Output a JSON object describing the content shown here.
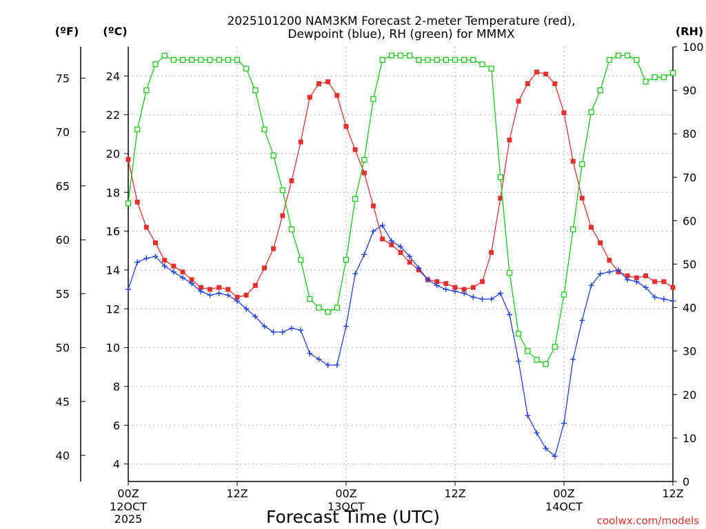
{
  "chart_data": {
    "type": "line",
    "title_line1": "2025101200 NAM3KM Forecast 2-meter Temperature (red),",
    "title_line2": "Dewpoint (blue), RH (green) for MMMX",
    "xlabel": "Forecast Time (UTC)",
    "credit": "coolwx.com/models",
    "axes": {
      "left_outer_unit": "(ºF)",
      "left_inner_unit": "(ºC)",
      "right_unit": "(RH)",
      "celsius_range": [
        3.1,
        25.5
      ],
      "rh_range": [
        0,
        100
      ],
      "celsius_ticks": [
        "4",
        "6",
        "8",
        "10",
        "12",
        "14",
        "16",
        "18",
        "20",
        "22",
        "24"
      ],
      "fahrenheit_ticks": [
        "40",
        "45",
        "50",
        "55",
        "60",
        "65",
        "70",
        "75"
      ],
      "rh_ticks": [
        "0",
        "10",
        "20",
        "30",
        "40",
        "50",
        "60",
        "70",
        "80",
        "90",
        "100"
      ],
      "x_range_hours": [
        0,
        60
      ],
      "x_ticks": [
        {
          "hour": 0,
          "label": "00Z",
          "line2": "12OCT",
          "line3": "2025"
        },
        {
          "hour": 12,
          "label": "12Z",
          "line2": "",
          "line3": ""
        },
        {
          "hour": 24,
          "label": "00Z",
          "line2": "13OCT",
          "line3": ""
        },
        {
          "hour": 36,
          "label": "12Z",
          "line2": "",
          "line3": ""
        },
        {
          "hour": 48,
          "label": "00Z",
          "line2": "14OCT",
          "line3": ""
        },
        {
          "hour": 60,
          "label": "12Z",
          "line2": "",
          "line3": ""
        }
      ]
    },
    "series": [
      {
        "name": "2-meter Temperature",
        "unit": "C",
        "color": "#e53030",
        "marker": "filled-square",
        "x": [
          0,
          1,
          2,
          3,
          4,
          5,
          6,
          7,
          8,
          9,
          10,
          11,
          12,
          13,
          14,
          15,
          16,
          17,
          18,
          19,
          20,
          21,
          22,
          23,
          24,
          25,
          26,
          27,
          28,
          29,
          30,
          31,
          32,
          33,
          34,
          35,
          36,
          37,
          38,
          39,
          40,
          41,
          42,
          43,
          44,
          45,
          46,
          47,
          48,
          49,
          50,
          51,
          52,
          53,
          54,
          55,
          56,
          57,
          58,
          59,
          60
        ],
        "values": [
          19.7,
          17.5,
          16.2,
          15.4,
          14.5,
          14.2,
          13.9,
          13.5,
          13.1,
          13.0,
          13.1,
          13.0,
          12.6,
          12.7,
          13.2,
          14.1,
          15.1,
          16.8,
          18.6,
          20.6,
          22.9,
          23.6,
          23.7,
          23.0,
          21.4,
          20.2,
          19.0,
          17.3,
          15.6,
          15.3,
          14.9,
          14.4,
          14.0,
          13.5,
          13.4,
          13.3,
          13.1,
          13.0,
          13.1,
          13.4,
          14.9,
          17.7,
          20.7,
          22.7,
          23.6,
          24.2,
          24.1,
          23.6,
          22.1,
          19.6,
          17.7,
          16.2,
          15.4,
          14.5,
          13.9,
          13.7,
          13.6,
          13.7,
          13.4,
          13.4,
          13.1
        ]
      },
      {
        "name": "Dewpoint",
        "unit": "C",
        "color": "#2040e0",
        "marker": "plus",
        "x": [
          0,
          1,
          2,
          3,
          4,
          5,
          6,
          7,
          8,
          9,
          10,
          11,
          12,
          13,
          14,
          15,
          16,
          17,
          18,
          19,
          20,
          21,
          22,
          23,
          24,
          25,
          26,
          27,
          28,
          29,
          30,
          31,
          32,
          33,
          34,
          35,
          36,
          37,
          38,
          39,
          40,
          41,
          42,
          43,
          44,
          45,
          46,
          47,
          48,
          49,
          50,
          51,
          52,
          53,
          54,
          55,
          56,
          57,
          58,
          59,
          60
        ],
        "values": [
          13.0,
          14.4,
          14.6,
          14.7,
          14.2,
          13.9,
          13.6,
          13.3,
          12.9,
          12.7,
          12.8,
          12.7,
          12.4,
          12.0,
          11.6,
          11.1,
          10.8,
          10.8,
          11.0,
          10.9,
          9.7,
          9.4,
          9.1,
          9.1,
          11.1,
          13.8,
          14.8,
          16.0,
          16.3,
          15.5,
          15.2,
          14.7,
          14.1,
          13.5,
          13.2,
          13.0,
          12.9,
          12.8,
          12.6,
          12.5,
          12.5,
          12.8,
          11.7,
          9.3,
          6.5,
          5.6,
          4.8,
          4.4,
          6.1,
          9.4,
          11.4,
          13.2,
          13.8,
          13.9,
          14.0,
          13.5,
          13.4,
          13.1,
          12.6,
          12.5,
          12.4
        ]
      },
      {
        "name": "RH",
        "unit": "%",
        "color": "#18c818",
        "marker": "open-square",
        "x": [
          0,
          1,
          2,
          3,
          4,
          5,
          6,
          7,
          8,
          9,
          10,
          11,
          12,
          13,
          14,
          15,
          16,
          17,
          18,
          19,
          20,
          21,
          22,
          23,
          24,
          25,
          26,
          27,
          28,
          29,
          30,
          31,
          32,
          33,
          34,
          35,
          36,
          37,
          38,
          39,
          40,
          41,
          42,
          43,
          44,
          45,
          46,
          47,
          48,
          49,
          50,
          51,
          52,
          53,
          54,
          55,
          56,
          57,
          58,
          59,
          60
        ],
        "values": [
          64,
          81,
          90,
          96,
          98,
          97,
          97,
          97,
          97,
          97,
          97,
          97,
          97,
          95,
          90,
          81,
          75,
          67,
          58,
          51,
          42,
          40,
          39,
          40,
          51,
          65,
          74,
          88,
          97,
          98,
          98,
          98,
          97,
          97,
          97,
          97,
          97,
          97,
          97,
          96,
          95,
          70,
          48,
          34,
          30,
          28,
          27,
          31,
          43,
          58,
          73,
          85,
          90,
          97,
          98,
          98,
          97,
          92,
          93,
          93,
          94
        ]
      }
    ]
  }
}
